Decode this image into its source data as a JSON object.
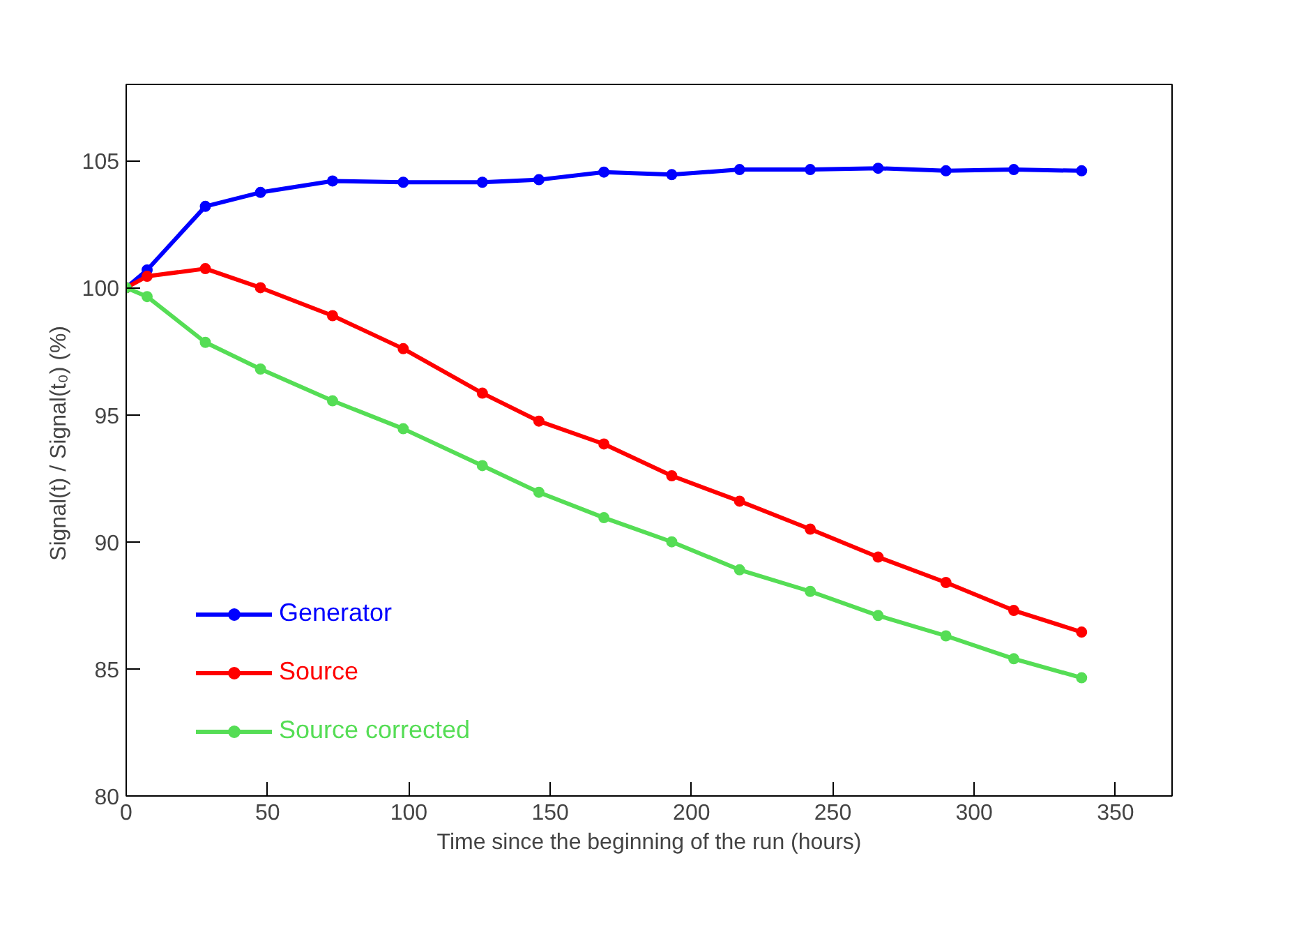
{
  "chart_data": {
    "type": "line",
    "xlabel": "Time since the beginning of the run (hours)",
    "ylabel": "Signal(t) / Signal(t₀)  (%)",
    "xlim": [
      0,
      370
    ],
    "xticks": [
      0,
      50,
      100,
      150,
      200,
      250,
      300,
      350
    ],
    "ylim": [
      80,
      108
    ],
    "yticks": [
      80,
      85,
      90,
      95,
      100,
      105
    ],
    "marker": "circle",
    "line_style": "solid",
    "grid": false,
    "legend": "bottom left",
    "series": [
      {
        "name": "Generator",
        "color": "#0000ff",
        "x": [
          0,
          7.4,
          28,
          47.5,
          73,
          98,
          126,
          146,
          169,
          193,
          217,
          242,
          266,
          290,
          314,
          338
        ],
        "values": [
          100,
          100.7,
          103.2,
          103.75,
          104.2,
          104.15,
          104.15,
          104.25,
          104.55,
          104.45,
          104.65,
          104.65,
          104.7,
          104.6,
          104.65,
          104.6
        ]
      },
      {
        "name": "Source",
        "color": "#ff0000",
        "x": [
          0,
          7.4,
          28,
          47.5,
          73,
          98,
          126,
          146,
          169,
          193,
          217,
          242,
          266,
          290,
          314,
          338
        ],
        "values": [
          100,
          100.45,
          100.75,
          100.0,
          98.9,
          97.6,
          95.85,
          94.75,
          93.85,
          92.6,
          91.6,
          90.5,
          89.4,
          88.4,
          87.3,
          86.45
        ]
      },
      {
        "name": "Source corrected",
        "color": "#55dd55",
        "x": [
          0,
          7.4,
          28,
          47.5,
          73,
          98,
          126,
          146,
          169,
          193,
          217,
          242,
          266,
          290,
          314,
          338
        ],
        "values": [
          100,
          99.65,
          97.85,
          96.8,
          95.55,
          94.45,
          93.0,
          91.95,
          90.95,
          90.0,
          88.9,
          88.05,
          87.1,
          86.3,
          85.4,
          84.65
        ]
      }
    ]
  }
}
